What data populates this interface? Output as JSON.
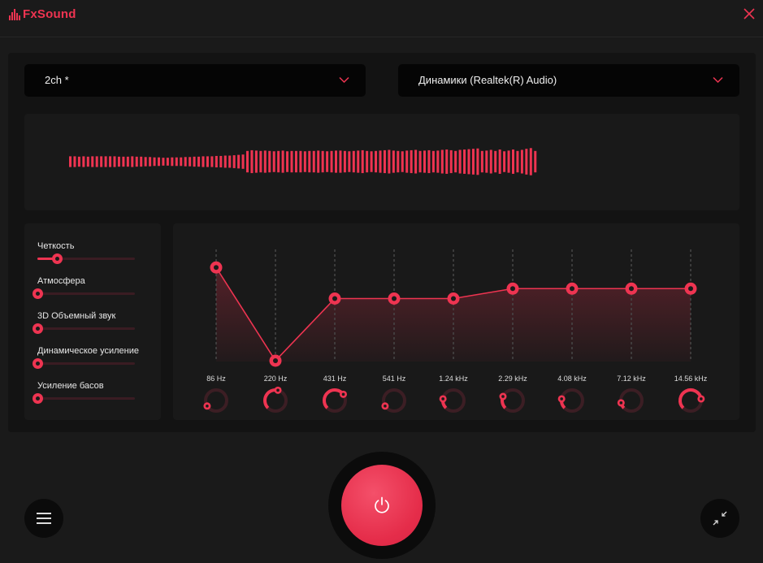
{
  "app": {
    "title": "FxSound",
    "accent": "#ee3451"
  },
  "icons": {
    "logo": "equalizer-bars-icon",
    "close": "close-icon",
    "chevron": "chevron-down-icon",
    "menu": "hamburger-menu-icon",
    "power": "power-icon",
    "minimize": "collapse-arrows-icon"
  },
  "preset": {
    "selected": "2ch *"
  },
  "device": {
    "selected": "Динамики (Realtek(R) Audio)"
  },
  "effects": [
    {
      "label": "Четкость",
      "value": 0.2
    },
    {
      "label": "Атмосфера",
      "value": 0
    },
    {
      "label": "3D Объемный звук",
      "value": 0
    },
    {
      "label": "Динамическое усиление",
      "value": 0
    },
    {
      "label": "Усиление басов",
      "value": 0
    }
  ],
  "equalizer": {
    "bands": [
      {
        "freq": "86 Hz",
        "level": 0.75
      },
      {
        "freq": "220 Hz",
        "level": 0.0
      },
      {
        "freq": "431 Hz",
        "level": 0.5
      },
      {
        "freq": "541 Hz",
        "level": 0.5
      },
      {
        "freq": "1.24 kHz",
        "level": 0.5
      },
      {
        "freq": "2.29 kHz",
        "level": 0.58
      },
      {
        "freq": "4.08 kHz",
        "level": 0.58
      },
      {
        "freq": "7.12 kHz",
        "level": 0.58
      },
      {
        "freq": "14.56 kHz",
        "level": 0.58
      }
    ],
    "knobs": [
      0.05,
      0.55,
      0.7,
      0.05,
      0.2,
      0.25,
      0.2,
      0.12,
      0.8
    ]
  },
  "visualizer": {
    "levels": [
      0.3,
      0.3,
      0.28,
      0.3,
      0.28,
      0.3,
      0.3,
      0.3,
      0.3,
      0.3,
      0.3,
      0.28,
      0.28,
      0.28,
      0.3,
      0.28,
      0.28,
      0.26,
      0.26,
      0.24,
      0.24,
      0.22,
      0.22,
      0.24,
      0.24,
      0.24,
      0.26,
      0.26,
      0.28,
      0.28,
      0.3,
      0.3,
      0.3,
      0.32,
      0.32,
      0.34,
      0.34,
      0.36,
      0.38,
      0.4,
      0.6,
      0.64,
      0.62,
      0.6,
      0.62,
      0.6,
      0.58,
      0.6,
      0.62,
      0.58,
      0.6,
      0.6,
      0.6,
      0.58,
      0.6,
      0.6,
      0.62,
      0.6,
      0.58,
      0.6,
      0.62,
      0.62,
      0.6,
      0.58,
      0.6,
      0.62,
      0.64,
      0.6,
      0.58,
      0.6,
      0.62,
      0.64,
      0.66,
      0.62,
      0.6,
      0.58,
      0.62,
      0.64,
      0.66,
      0.6,
      0.62,
      0.64,
      0.6,
      0.62,
      0.66,
      0.68,
      0.64,
      0.6,
      0.66,
      0.68,
      0.7,
      0.72,
      0.74,
      0.6,
      0.62,
      0.66,
      0.6,
      0.68,
      0.58,
      0.62,
      0.68,
      0.6,
      0.66,
      0.72,
      0.76,
      0.6
    ]
  }
}
